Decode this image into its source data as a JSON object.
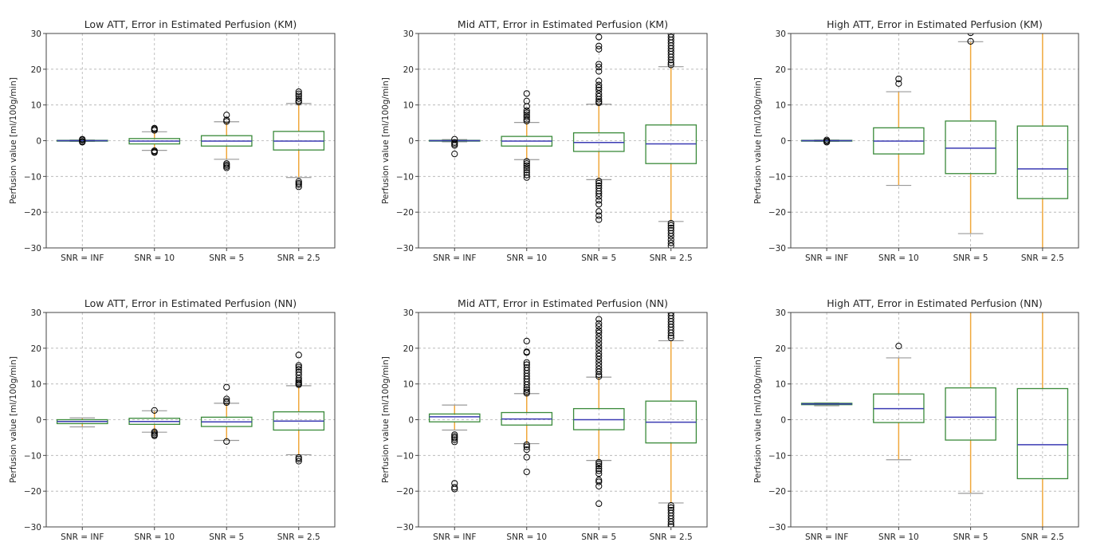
{
  "figure": {
    "layout": "2 rows x 3 columns of box plots"
  },
  "style": {
    "box_color": "#3a8a3a",
    "median_color": "#3b3bb3",
    "whisker_color": "#f0a83c",
    "cap_color": "#9a9a9a",
    "flier_color": "#000000",
    "grid_color": "#b0b0b0",
    "axes_color": "#444444"
  },
  "chart_data": [
    {
      "type": "box",
      "title": "Low ATT, Error in Estimated Perfusion (KM)",
      "xlabel": "",
      "ylabel": "Perfusion value [ml/100g/min]",
      "ylim": [
        -30,
        30
      ],
      "yticks": [
        "30",
        "20",
        "10",
        "0",
        "−10",
        "−20",
        "−30"
      ],
      "ytick_values": [
        30,
        20,
        10,
        0,
        -10,
        -20,
        -30
      ],
      "grid": true,
      "categories": [
        "SNR = INF",
        "SNR = 10",
        "SNR = 5",
        "SNR = 2.5"
      ],
      "boxes": [
        {
          "whislo": -0.2,
          "q1": -0.1,
          "med": 0.0,
          "q3": 0.1,
          "whishi": 0.2,
          "fliers": [
            0.4,
            0.2,
            -0.2,
            -0.4
          ]
        },
        {
          "whislo": -2.7,
          "q1": -0.9,
          "med": -0.1,
          "q3": 0.6,
          "whishi": 2.5,
          "fliers": [
            3.5,
            3.2,
            2.9,
            -2.8,
            -3.1,
            -3.3
          ]
        },
        {
          "whislo": -5.2,
          "q1": -1.5,
          "med": -0.1,
          "q3": 1.4,
          "whishi": 5.3,
          "fliers": [
            7.2,
            5.8,
            5.4,
            -6.4,
            -6.8,
            -7.2,
            -7.6
          ]
        },
        {
          "whislo": -10.3,
          "q1": -2.6,
          "med": -0.1,
          "q3": 2.6,
          "whishi": 10.4,
          "fliers": [
            13.7,
            13.1,
            12.5,
            11.8,
            11.2,
            10.8,
            -11.4,
            -11.9,
            -12.3,
            -12.9
          ]
        }
      ]
    },
    {
      "type": "box",
      "title": "Mid ATT, Error in Estimated Perfusion (KM)",
      "xlabel": "",
      "ylabel": "Perfusion value [ml/100g/min]",
      "ylim": [
        -30,
        30
      ],
      "yticks": [
        "30",
        "20",
        "10",
        "0",
        "−10",
        "−20",
        "−30"
      ],
      "ytick_values": [
        30,
        20,
        10,
        0,
        -10,
        -20,
        -30
      ],
      "grid": true,
      "categories": [
        "SNR = INF",
        "SNR = 10",
        "SNR = 5",
        "SNR = 2.5"
      ],
      "boxes": [
        {
          "whislo": -0.3,
          "q1": -0.1,
          "med": 0.0,
          "q3": 0.1,
          "whishi": 0.3,
          "fliers": [
            0.4,
            -0.5,
            -0.9,
            -1.3,
            -3.7
          ]
        },
        {
          "whislo": -5.3,
          "q1": -1.5,
          "med": -0.1,
          "q3": 1.2,
          "whishi": 5.1,
          "fliers": [
            13.2,
            11.1,
            9.6,
            8.4,
            7.8,
            7.2,
            6.6,
            6.0,
            5.5,
            -5.8,
            -6.4,
            -7.0,
            -7.6,
            -8.2,
            -8.9,
            -9.6,
            -10.3
          ]
        },
        {
          "whislo": -10.9,
          "q1": -3.0,
          "med": -0.5,
          "q3": 2.2,
          "whishi": 10.2,
          "fliers": [
            29.0,
            26.5,
            25.6,
            21.4,
            20.6,
            19.4,
            16.7,
            15.6,
            14.9,
            14.2,
            13.2,
            12.4,
            11.6,
            11.0,
            10.6,
            -11.3,
            -11.9,
            -12.6,
            -13.3,
            -14.1,
            -14.8,
            -15.6,
            -16.7,
            -17.8,
            -19.8,
            -21.0,
            -22.1
          ]
        },
        {
          "whislo": -22.6,
          "q1": -6.4,
          "med": -0.9,
          "q3": 4.4,
          "whishi": 20.7,
          "fliers": [
            29.8,
            29.0,
            28.2,
            27.4,
            26.6,
            25.8,
            25.0,
            24.2,
            23.4,
            22.6,
            21.8,
            21.2,
            -23.1,
            -23.7,
            -24.4,
            -25.1,
            -25.9,
            -26.7,
            -27.7,
            -28.6,
            -29.4
          ]
        }
      ]
    },
    {
      "type": "box",
      "title": "High ATT, Error in Estimated Perfusion (KM)",
      "xlabel": "",
      "ylabel": "Perfusion value [ml/100g/min]",
      "ylim": [
        -30,
        30
      ],
      "yticks": [
        "30",
        "20",
        "10",
        "0",
        "−10",
        "−20",
        "−30"
      ],
      "ytick_values": [
        30,
        20,
        10,
        0,
        -10,
        -20,
        -30
      ],
      "grid": true,
      "categories": [
        "SNR = INF",
        "SNR = 10",
        "SNR = 5",
        "SNR = 2.5"
      ],
      "boxes": [
        {
          "whislo": -0.2,
          "q1": -0.1,
          "med": 0.0,
          "q3": 0.1,
          "whishi": 0.2,
          "fliers": [
            0.2,
            -0.1,
            -0.4
          ]
        },
        {
          "whislo": -12.5,
          "q1": -3.7,
          "med": -0.1,
          "q3": 3.6,
          "whishi": 13.7,
          "fliers": [
            17.3,
            16.0
          ]
        },
        {
          "whislo": -26.0,
          "q1": -9.2,
          "med": -2.1,
          "q3": 5.5,
          "whishi": 27.7,
          "fliers": [
            30.2,
            27.8
          ]
        },
        {
          "whislo": -35.0,
          "q1": -16.2,
          "med": -7.9,
          "q3": 4.1,
          "whishi": 35.0,
          "fliers": []
        }
      ]
    },
    {
      "type": "box",
      "title": "Low ATT, Error in Estimated Perfusion (NN)",
      "xlabel": "",
      "ylabel": "Perfusion value [ml/100g/min]",
      "ylim": [
        -30,
        30
      ],
      "yticks": [
        "30",
        "20",
        "10",
        "0",
        "−10",
        "−20",
        "−30"
      ],
      "ytick_values": [
        30,
        20,
        10,
        0,
        -10,
        -20,
        -30
      ],
      "grid": true,
      "categories": [
        "SNR = INF",
        "SNR = 10",
        "SNR = 5",
        "SNR = 2.5"
      ],
      "boxes": [
        {
          "whislo": -2.0,
          "q1": -1.1,
          "med": -0.5,
          "q3": 0.0,
          "whishi": 0.5,
          "fliers": []
        },
        {
          "whislo": -3.5,
          "q1": -1.3,
          "med": -0.5,
          "q3": 0.4,
          "whishi": 2.5,
          "fliers": [
            2.6,
            -3.4,
            -3.8,
            -4.2,
            -4.5
          ]
        },
        {
          "whislo": -5.8,
          "q1": -1.9,
          "med": -0.6,
          "q3": 0.7,
          "whishi": 4.6,
          "fliers": [
            9.1,
            5.8,
            5.2,
            4.8,
            -6.1
          ]
        },
        {
          "whislo": -9.8,
          "q1": -2.9,
          "med": -0.4,
          "q3": 2.2,
          "whishi": 9.5,
          "fliers": [
            18.1,
            15.2,
            14.7,
            14.1,
            13.3,
            12.5,
            11.6,
            11.0,
            10.5,
            10.1,
            9.8,
            -10.6,
            -11.0,
            -11.6
          ]
        }
      ]
    },
    {
      "type": "box",
      "title": "Mid ATT, Error in Estimated Perfusion (NN)",
      "xlabel": "",
      "ylabel": "Perfusion value [ml/100g/min]",
      "ylim": [
        -30,
        30
      ],
      "yticks": [
        "30",
        "20",
        "10",
        "0",
        "−10",
        "−20",
        "−30"
      ],
      "ytick_values": [
        30,
        20,
        10,
        0,
        -10,
        -20,
        -30
      ],
      "grid": true,
      "categories": [
        "SNR = INF",
        "SNR = 10",
        "SNR = 5",
        "SNR = 2.5"
      ],
      "boxes": [
        {
          "whislo": -2.9,
          "q1": -0.6,
          "med": 0.8,
          "q3": 1.6,
          "whishi": 4.1,
          "fliers": [
            -4.2,
            -4.7,
            -5.1,
            -5.6,
            -6.2,
            -17.8,
            -18.9,
            -19.4
          ]
        },
        {
          "whislo": -6.7,
          "q1": -1.5,
          "med": 0.2,
          "q3": 2.0,
          "whishi": 7.3,
          "fliers": [
            22.0,
            19.0,
            18.8,
            16.0,
            15.4,
            14.6,
            13.8,
            13.0,
            12.2,
            11.4,
            10.6,
            9.8,
            9.0,
            8.4,
            7.8,
            7.4,
            -7.0,
            -7.6,
            -8.4,
            -10.5,
            -14.6
          ]
        },
        {
          "whislo": -11.4,
          "q1": -2.8,
          "med": 0.0,
          "q3": 3.1,
          "whishi": 11.9,
          "fliers": [
            28.1,
            26.9,
            26.1,
            25.0,
            24.3,
            23.3,
            22.4,
            21.4,
            20.5,
            19.6,
            18.6,
            17.8,
            16.9,
            16.0,
            15.1,
            14.2,
            13.4,
            12.6,
            12.1,
            -11.9,
            -12.4,
            -13.0,
            -13.7,
            -14.3,
            -15.1,
            -16.9,
            -17.4,
            -18.6,
            -23.5
          ]
        },
        {
          "whislo": -23.3,
          "q1": -6.5,
          "med": -0.7,
          "q3": 5.2,
          "whishi": 22.1,
          "fliers": [
            29.9,
            29.1,
            28.3,
            27.5,
            26.7,
            25.9,
            25.1,
            24.3,
            23.5,
            22.9,
            -24.0,
            -24.6,
            -25.3,
            -26.1,
            -26.9,
            -27.7,
            -28.5,
            -29.3,
            -29.9
          ]
        }
      ]
    },
    {
      "type": "box",
      "title": "High ATT, Error in Estimated Perfusion (NN)",
      "xlabel": "",
      "ylabel": "Perfusion value [ml/100g/min]",
      "ylim": [
        -30,
        30
      ],
      "yticks": [
        "30",
        "20",
        "10",
        "0",
        "−10",
        "−20",
        "−30"
      ],
      "ytick_values": [
        30,
        20,
        10,
        0,
        -10,
        -20,
        -30
      ],
      "grid": true,
      "categories": [
        "SNR = INF",
        "SNR = 10",
        "SNR = 5",
        "SNR = 2.5"
      ],
      "boxes": [
        {
          "whislo": 3.9,
          "q1": 4.2,
          "med": 4.4,
          "q3": 4.6,
          "whishi": 4.7,
          "fliers": []
        },
        {
          "whislo": -11.2,
          "q1": -0.8,
          "med": 3.1,
          "q3": 7.2,
          "whishi": 17.3,
          "fliers": [
            20.6
          ]
        },
        {
          "whislo": -20.6,
          "q1": -5.7,
          "med": 0.7,
          "q3": 8.9,
          "whishi": 35.0,
          "fliers": []
        },
        {
          "whislo": -35.0,
          "q1": -16.5,
          "med": -7.0,
          "q3": 8.7,
          "whishi": 35.0,
          "fliers": []
        }
      ]
    }
  ]
}
